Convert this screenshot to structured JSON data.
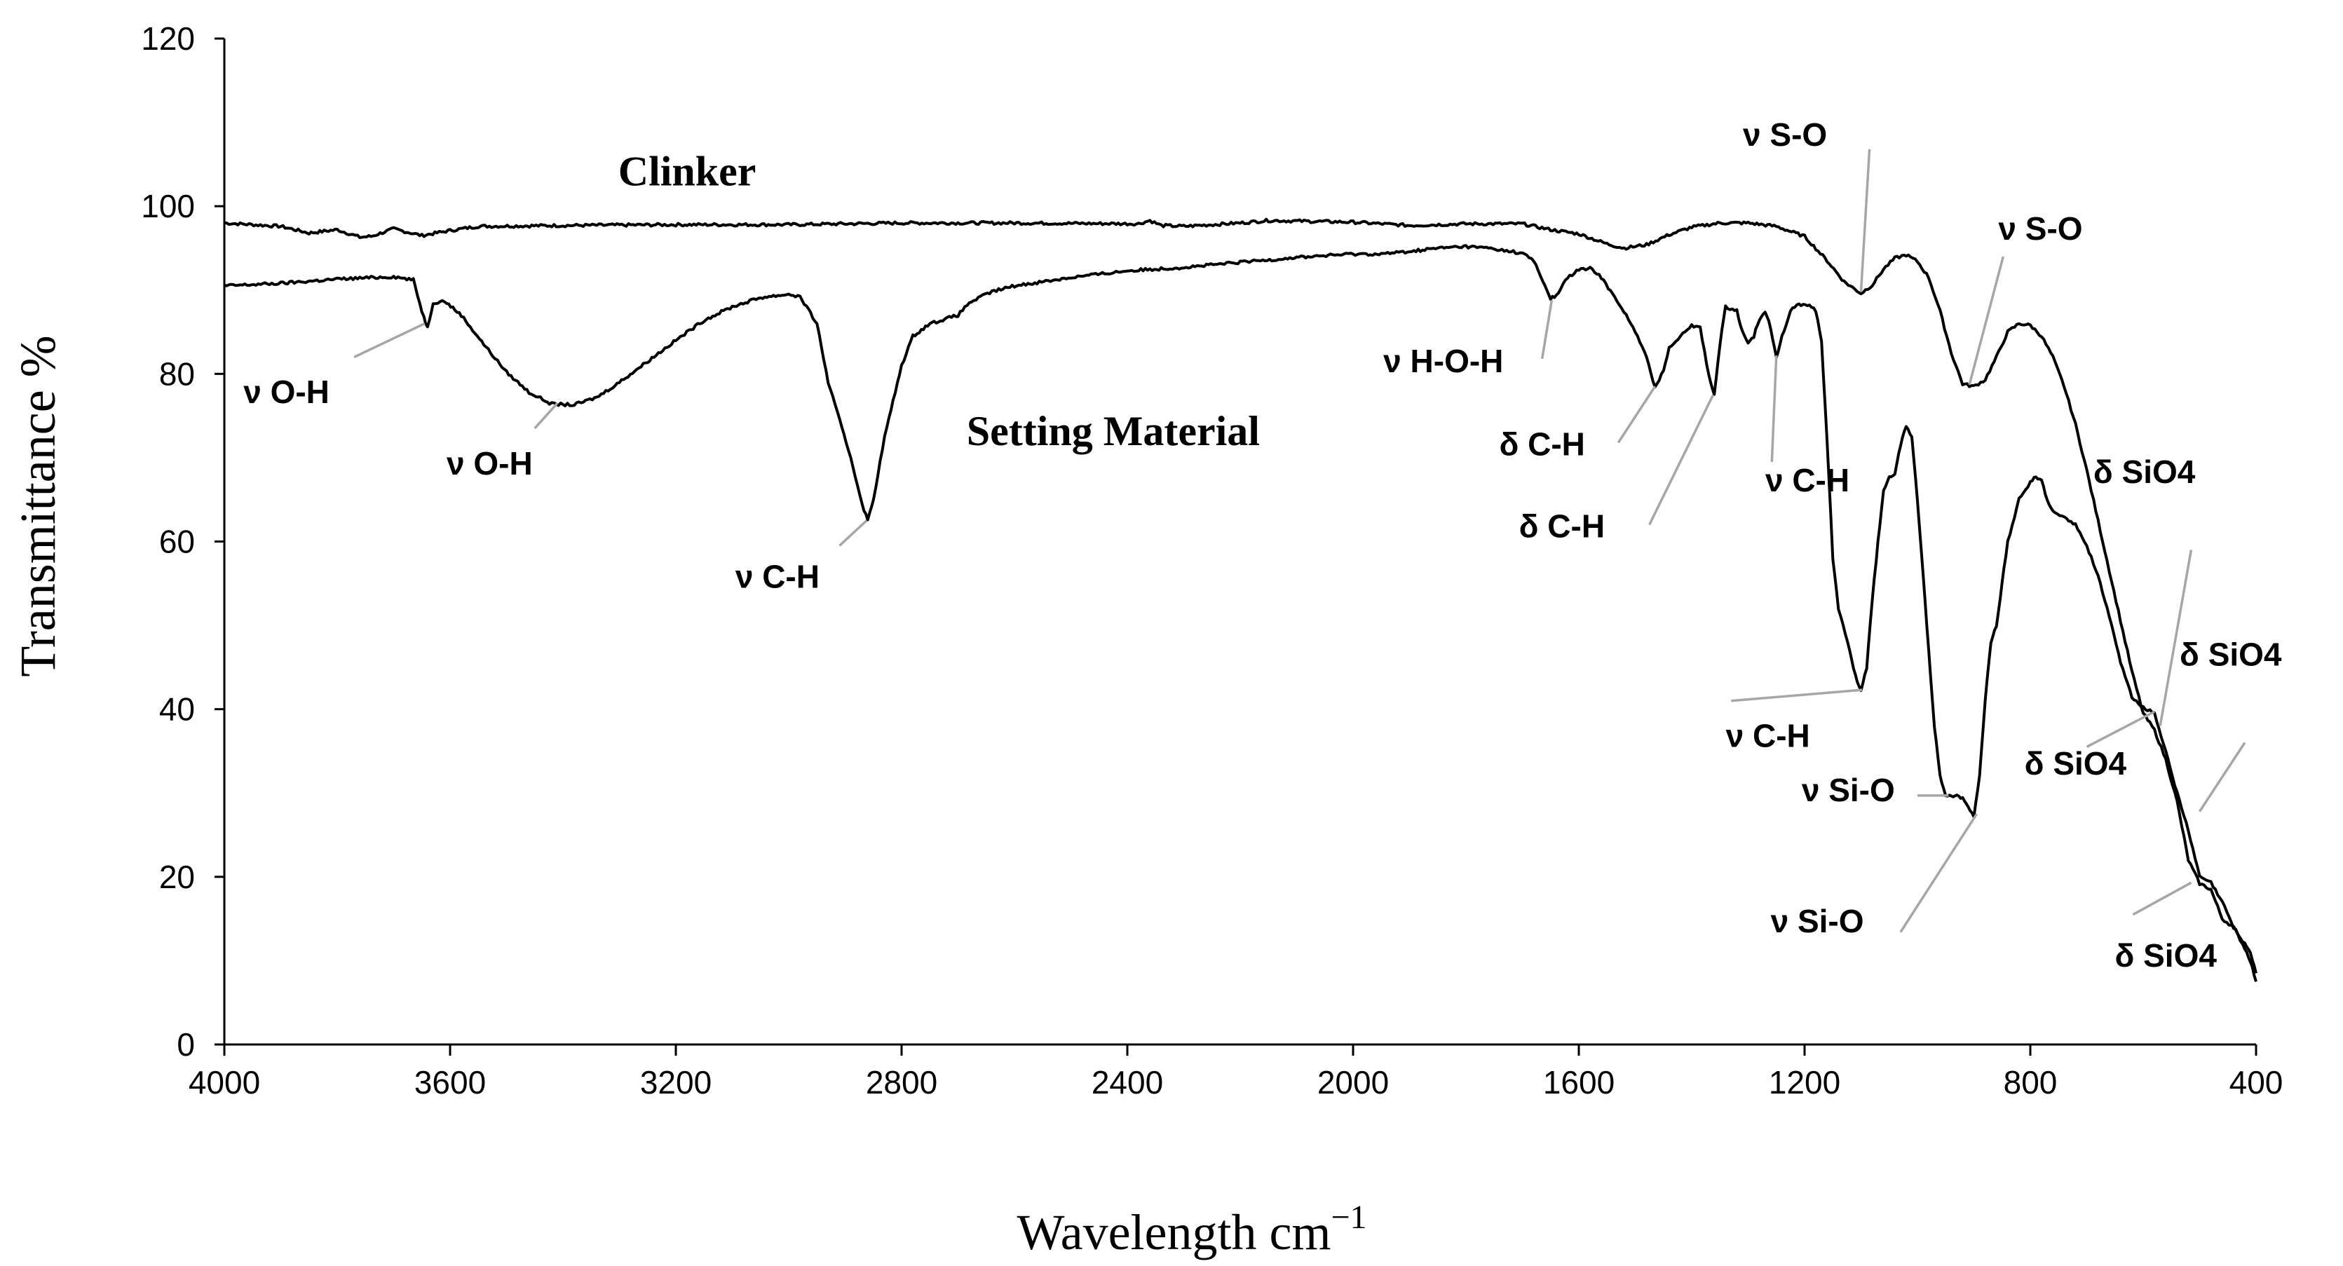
{
  "chart_data": {
    "type": "line",
    "title": "",
    "xlabel": "Wavelength cm",
    "xlabel_superscript": "−1",
    "ylabel": "Transmittance  %",
    "xlim": [
      4000,
      400
    ],
    "ylim": [
      0,
      120
    ],
    "x_reversed": true,
    "grid": false,
    "xticks": [
      4000,
      3600,
      3200,
      2800,
      2400,
      2000,
      1600,
      1200,
      800,
      400
    ],
    "yticks": [
      0,
      20,
      40,
      60,
      80,
      100,
      120
    ],
    "series": [
      {
        "name": "Clinker",
        "points": [
          [
            4000,
            98
          ],
          [
            3900,
            97.6
          ],
          [
            3850,
            96.8
          ],
          [
            3800,
            97.2
          ],
          [
            3760,
            96.3
          ],
          [
            3740,
            96.4
          ],
          [
            3700,
            97.3
          ],
          [
            3650,
            96.5
          ],
          [
            3600,
            97.1
          ],
          [
            3550,
            97.6
          ],
          [
            3400,
            97.7
          ],
          [
            3200,
            97.8
          ],
          [
            3000,
            97.8
          ],
          [
            2800,
            98.0
          ],
          [
            2600,
            98.0
          ],
          [
            2380,
            97.9
          ],
          [
            2360,
            98.3
          ],
          [
            2340,
            97.7
          ],
          [
            2300,
            97.6
          ],
          [
            2200,
            98.0
          ],
          [
            2150,
            98.3
          ],
          [
            2000,
            98.1
          ],
          [
            1900,
            97.7
          ],
          [
            1800,
            97.9
          ],
          [
            1700,
            97.9
          ],
          [
            1650,
            97.2
          ],
          [
            1600,
            96.7
          ],
          [
            1550,
            95.5
          ],
          [
            1520,
            95.0
          ],
          [
            1480,
            95.4
          ],
          [
            1440,
            96.6
          ],
          [
            1400,
            97.5
          ],
          [
            1350,
            98.0
          ],
          [
            1300,
            98.0
          ],
          [
            1250,
            97.6
          ],
          [
            1200,
            96.4
          ],
          [
            1160,
            93.5
          ],
          [
            1130,
            91.0
          ],
          [
            1100,
            89.6
          ],
          [
            1080,
            90.6
          ],
          [
            1060,
            92.5
          ],
          [
            1040,
            93.8
          ],
          [
            1020,
            94.2
          ],
          [
            1000,
            93.4
          ],
          [
            980,
            91.5
          ],
          [
            960,
            87.5
          ],
          [
            940,
            82.5
          ],
          [
            920,
            78.8
          ],
          [
            900,
            78.5
          ],
          [
            880,
            79.3
          ],
          [
            860,
            82.0
          ],
          [
            840,
            85.0
          ],
          [
            820,
            86.0
          ],
          [
            800,
            85.8
          ],
          [
            780,
            84.5
          ],
          [
            760,
            82.0
          ],
          [
            740,
            78.5
          ],
          [
            720,
            74.0
          ],
          [
            700,
            68.5
          ],
          [
            680,
            62.5
          ],
          [
            660,
            56.5
          ],
          [
            640,
            50.5
          ],
          [
            620,
            44.5
          ],
          [
            600,
            39.5
          ],
          [
            580,
            37.5
          ],
          [
            560,
            34.0
          ],
          [
            540,
            29.0
          ],
          [
            520,
            22.0
          ],
          [
            500,
            19.2
          ],
          [
            480,
            18.5
          ],
          [
            460,
            15.0
          ],
          [
            440,
            14.0
          ],
          [
            420,
            11.5
          ],
          [
            410,
            10.0
          ],
          [
            400,
            7.5
          ]
        ]
      },
      {
        "name": "Setting Material",
        "points": [
          [
            4000,
            90.5
          ],
          [
            3900,
            90.8
          ],
          [
            3800,
            91.3
          ],
          [
            3700,
            91.6
          ],
          [
            3665,
            91.2
          ],
          [
            3650,
            87.5
          ],
          [
            3640,
            85.5
          ],
          [
            3630,
            88.5
          ],
          [
            3610,
            88.7
          ],
          [
            3580,
            87.0
          ],
          [
            3540,
            83.5
          ],
          [
            3500,
            80.2
          ],
          [
            3460,
            77.8
          ],
          [
            3420,
            76.4
          ],
          [
            3380,
            76.3
          ],
          [
            3340,
            77.2
          ],
          [
            3300,
            79.0
          ],
          [
            3250,
            81.5
          ],
          [
            3200,
            84.0
          ],
          [
            3150,
            86.4
          ],
          [
            3100,
            88.0
          ],
          [
            3050,
            89.1
          ],
          [
            3000,
            89.5
          ],
          [
            2980,
            89.2
          ],
          [
            2950,
            86.0
          ],
          [
            2930,
            79.0
          ],
          [
            2910,
            74.5
          ],
          [
            2890,
            70.0
          ],
          [
            2870,
            64.5
          ],
          [
            2860,
            62.5
          ],
          [
            2850,
            65.0
          ],
          [
            2830,
            72.5
          ],
          [
            2800,
            81.0
          ],
          [
            2780,
            84.5
          ],
          [
            2750,
            86.0
          ],
          [
            2700,
            87.0
          ],
          [
            2680,
            88.5
          ],
          [
            2640,
            89.8
          ],
          [
            2600,
            90.5
          ],
          [
            2500,
            91.5
          ],
          [
            2400,
            92.3
          ],
          [
            2300,
            92.7
          ],
          [
            2200,
            93.3
          ],
          [
            2100,
            93.9
          ],
          [
            2000,
            94.3
          ],
          [
            1950,
            94.3
          ],
          [
            1900,
            94.6
          ],
          [
            1850,
            95.0
          ],
          [
            1800,
            95.2
          ],
          [
            1760,
            95.0
          ],
          [
            1700,
            94.4
          ],
          [
            1680,
            93.5
          ],
          [
            1660,
            90.5
          ],
          [
            1650,
            89.0
          ],
          [
            1640,
            89.3
          ],
          [
            1620,
            91.5
          ],
          [
            1600,
            92.4
          ],
          [
            1580,
            92.6
          ],
          [
            1560,
            91.5
          ],
          [
            1540,
            89.5
          ],
          [
            1520,
            87.5
          ],
          [
            1500,
            85.0
          ],
          [
            1480,
            82.0
          ],
          [
            1465,
            78.3
          ],
          [
            1450,
            80.5
          ],
          [
            1440,
            83.0
          ],
          [
            1420,
            84.6
          ],
          [
            1400,
            85.8
          ],
          [
            1385,
            85.5
          ],
          [
            1370,
            80.0
          ],
          [
            1360,
            77.5
          ],
          [
            1350,
            83.5
          ],
          [
            1340,
            88.0
          ],
          [
            1320,
            87.5
          ],
          [
            1310,
            85.0
          ],
          [
            1300,
            83.5
          ],
          [
            1290,
            84.5
          ],
          [
            1280,
            86.5
          ],
          [
            1270,
            87.5
          ],
          [
            1260,
            85.5
          ],
          [
            1250,
            82.0
          ],
          [
            1240,
            84.5
          ],
          [
            1225,
            87.5
          ],
          [
            1210,
            88.3
          ],
          [
            1195,
            88.3
          ],
          [
            1180,
            87.5
          ],
          [
            1170,
            84.0
          ],
          [
            1160,
            72.0
          ],
          [
            1150,
            58.0
          ],
          [
            1140,
            52.0
          ],
          [
            1120,
            47.0
          ],
          [
            1110,
            44.0
          ],
          [
            1100,
            42.2
          ],
          [
            1090,
            45.0
          ],
          [
            1080,
            53.0
          ],
          [
            1070,
            60.0
          ],
          [
            1060,
            66.0
          ],
          [
            1050,
            67.8
          ],
          [
            1040,
            68.0
          ],
          [
            1030,
            71.5
          ],
          [
            1020,
            73.8
          ],
          [
            1010,
            72.5
          ],
          [
            1000,
            65.0
          ],
          [
            990,
            56.0
          ],
          [
            980,
            47.0
          ],
          [
            970,
            38.0
          ],
          [
            960,
            32.0
          ],
          [
            950,
            29.8
          ],
          [
            940,
            29.7
          ],
          [
            930,
            29.6
          ],
          [
            920,
            29.5
          ],
          [
            910,
            28.5
          ],
          [
            900,
            27.2
          ],
          [
            890,
            32.0
          ],
          [
            880,
            41.0
          ],
          [
            870,
            48.0
          ],
          [
            860,
            50.0
          ],
          [
            850,
            55.0
          ],
          [
            840,
            60.0
          ],
          [
            820,
            65.0
          ],
          [
            800,
            67.0
          ],
          [
            790,
            67.8
          ],
          [
            780,
            67.2
          ],
          [
            770,
            65.0
          ],
          [
            760,
            63.5
          ],
          [
            740,
            63.0
          ],
          [
            720,
            62.0
          ],
          [
            700,
            59.5
          ],
          [
            680,
            56.0
          ],
          [
            660,
            51.0
          ],
          [
            640,
            45.5
          ],
          [
            620,
            41.5
          ],
          [
            600,
            40.2
          ],
          [
            580,
            39.5
          ],
          [
            560,
            35.0
          ],
          [
            540,
            30.0
          ],
          [
            520,
            25.5
          ],
          [
            500,
            20.0
          ],
          [
            480,
            19.3
          ],
          [
            460,
            17.0
          ],
          [
            440,
            14.0
          ],
          [
            420,
            12.0
          ],
          [
            410,
            11.0
          ],
          [
            400,
            8.5
          ]
        ]
      }
    ],
    "series_labels": [
      {
        "text": "Clinker",
        "x": 3180,
        "y": 102.5
      },
      {
        "text": "Setting Material",
        "x": 2425,
        "y": 71.5
      }
    ],
    "annotations": [
      {
        "text": "ν O-H",
        "peak": [
          3645,
          86.0
        ],
        "label_at": [
          3890,
          76.5
        ],
        "anchor": "middle",
        "line_from": [
          3770,
          82.0
        ]
      },
      {
        "text": "ν O-H",
        "peak": [
          3410,
          76.5
        ],
        "label_at": [
          3530,
          68.0
        ],
        "anchor": "middle",
        "line_from": [
          3450,
          73.5
        ]
      },
      {
        "text": "ν C-H",
        "peak": [
          2862,
          62.5
        ],
        "label_at": [
          3020,
          54.5
        ],
        "anchor": "middle",
        "line_from": [
          2910,
          59.5
        ]
      },
      {
        "text": "ν H-O-H",
        "peak": [
          1648,
          88.8
        ],
        "label_at": [
          1840,
          80.2
        ],
        "anchor": "middle",
        "line_from": [
          1665,
          81.8
        ]
      },
      {
        "text": "δ C-H",
        "peak": [
          1465,
          78.5
        ],
        "label_at": [
          1665,
          70.3
        ],
        "anchor": "middle",
        "line_from": [
          1530,
          71.8
        ]
      },
      {
        "text": "δ C-H",
        "peak": [
          1362,
          77.5
        ],
        "label_at": [
          1630,
          60.5
        ],
        "anchor": "middle",
        "line_from": [
          1475,
          62.0
        ]
      },
      {
        "text": "ν C-H",
        "peak": [
          1250,
          82.2
        ],
        "label_at": [
          1195,
          66.0
        ],
        "anchor": "middle",
        "line_from": [
          1258,
          69.5
        ]
      },
      {
        "text": "ν S-O",
        "peak": [
          1100,
          89.8
        ],
        "label_at": [
          1160,
          107.2
        ],
        "anchor": "end",
        "line_from": [
          1085,
          106.8
        ]
      },
      {
        "text": "ν S-O",
        "peak": [
          908,
          78.7
        ],
        "label_at": [
          782,
          96.0
        ],
        "anchor": "middle",
        "line_from": [
          848,
          94.0
        ]
      },
      {
        "text": "ν C-H",
        "peak": [
          1098,
          42.3
        ],
        "label_at": [
          1265,
          35.5
        ],
        "anchor": "middle",
        "line_from": [
          1330,
          41.0
        ]
      },
      {
        "text": "ν Si-O",
        "peak": [
          945,
          29.7
        ],
        "label_at": [
          1040,
          29.0
        ],
        "anchor": "end",
        "line_from": [
          1000,
          29.7
        ]
      },
      {
        "text": "ν Si-O",
        "peak": [
          895,
          27.5
        ],
        "label_at": [
          1095,
          13.4
        ],
        "anchor": "end",
        "line_from": [
          1030,
          13.4
        ]
      },
      {
        "text": "δ SiO4",
        "peak": [
          570,
          38.0
        ],
        "label_at": [
          598,
          67.0
        ],
        "anchor": "middle",
        "line_from": [
          515,
          59.0
        ]
      },
      {
        "text": "δ SiO4",
        "peak": [
          580,
          39.7
        ],
        "label_at": [
          720,
          32.2
        ],
        "anchor": "middle",
        "line_from": [
          700,
          35.5
        ]
      },
      {
        "text": "δ SiO4",
        "peak": [
          500,
          27.8
        ],
        "label_at": [
          445,
          45.2
        ],
        "anchor": "middle",
        "line_from": [
          420,
          36.0
        ]
      },
      {
        "text": "δ SiO4",
        "peak": [
          515,
          19.3
        ],
        "label_at": [
          560,
          9.3
        ],
        "anchor": "middle",
        "line_from": [
          618,
          15.5
        ]
      }
    ]
  }
}
